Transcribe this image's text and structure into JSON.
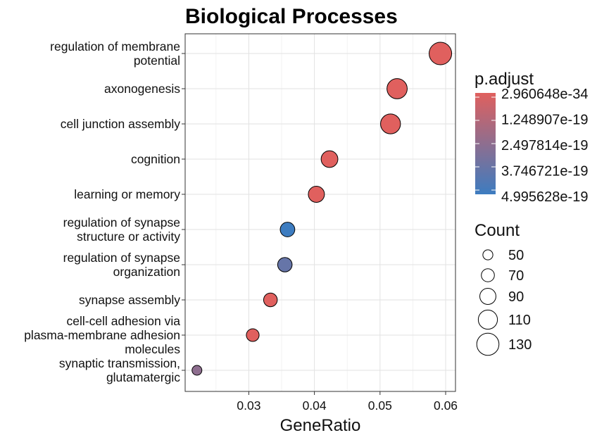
{
  "chart_data": {
    "type": "scatter",
    "title": "Biological Processes",
    "xlabel": "GeneRatio",
    "ylabel": "",
    "xlim": [
      0.0203,
      0.0615
    ],
    "xticks": [
      0.03,
      0.04,
      0.05,
      0.06
    ],
    "xtick_labels": [
      "0.03",
      "0.04",
      "0.05",
      "0.06"
    ],
    "grid": true,
    "categories": [
      [
        "regulation of membrane",
        "potential"
      ],
      [
        "axonogenesis"
      ],
      [
        "cell junction assembly"
      ],
      [
        "cognition"
      ],
      [
        "learning or memory"
      ],
      [
        "regulation of synapse",
        "structure or activity"
      ],
      [
        "regulation of synapse",
        "organization"
      ],
      [
        "synapse assembly"
      ],
      [
        "cell-cell adhesion via",
        "plasma-membrane adhesion",
        "molecules"
      ],
      [
        "synaptic transmission,",
        "glutamatergic"
      ]
    ],
    "points": [
      {
        "x": 0.0592,
        "count": 132,
        "p_adjust": 3e-34
      },
      {
        "x": 0.0526,
        "count": 117,
        "p_adjust": 2e-28
      },
      {
        "x": 0.0516,
        "count": 115,
        "p_adjust": 1e-30
      },
      {
        "x": 0.0423,
        "count": 94,
        "p_adjust": 5e-25
      },
      {
        "x": 0.0403,
        "count": 90,
        "p_adjust": 2e-22
      },
      {
        "x": 0.0359,
        "count": 80,
        "p_adjust": 4.99e-19
      },
      {
        "x": 0.0355,
        "count": 79,
        "p_adjust": 3.75e-19
      },
      {
        "x": 0.0333,
        "count": 74,
        "p_adjust": 5e-24
      },
      {
        "x": 0.0306,
        "count": 68,
        "p_adjust": 3e-26
      },
      {
        "x": 0.0221,
        "count": 49,
        "p_adjust": 2.5e-19
      }
    ],
    "color_legend": {
      "title": "p.adjust",
      "labels": [
        "2.960648e-34",
        "1.248907e-19",
        "2.497814e-19",
        "3.746721e-19",
        "4.995628e-19"
      ],
      "values": [
        2.960648e-34,
        1.248907e-19,
        2.497814e-19,
        3.746721e-19,
        4.995628e-19
      ],
      "low_color": "#E0605E",
      "high_color": "#3D7CC0"
    },
    "size_legend": {
      "title": "Count",
      "values": [
        50,
        70,
        90,
        110,
        130
      ],
      "labels": [
        "50",
        "70",
        "90",
        "110",
        "130"
      ]
    },
    "legend_position": "right"
  }
}
